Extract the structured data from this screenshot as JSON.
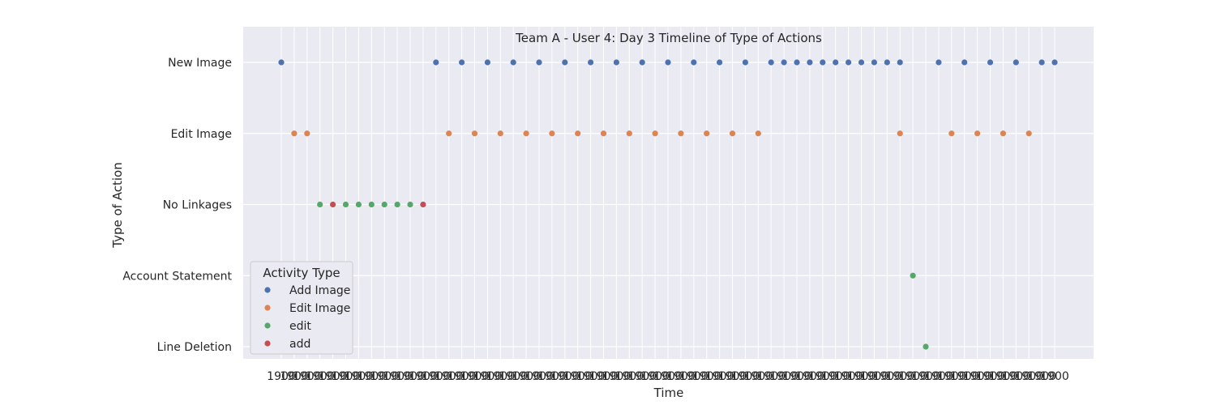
{
  "chart_data": {
    "type": "scatter",
    "title": "Team A - User 4: Day 3 Timeline of Type of Actions",
    "xlabel": "Time",
    "ylabel": "Type of Action",
    "categories": [
      "New Image",
      "Edit Image",
      "No Linkages",
      "Account Statement",
      "Line Deletion"
    ],
    "x_tick_label": "1900",
    "x_tick_count": 61,
    "grid": true,
    "legend": {
      "title": "Activity Type",
      "position": "lower-left",
      "entries": [
        {
          "name": "Add Image",
          "color": "#4c72b0"
        },
        {
          "name": "Edit Image",
          "color": "#dd8452"
        },
        {
          "name": "edit",
          "color": "#55a868"
        },
        {
          "name": "add",
          "color": "#c44e52"
        }
      ]
    },
    "series": [
      {
        "name": "Add Image",
        "color": "#4c72b0",
        "points": [
          [
            0,
            "New Image"
          ],
          [
            12,
            "New Image"
          ],
          [
            14,
            "New Image"
          ],
          [
            16,
            "New Image"
          ],
          [
            18,
            "New Image"
          ],
          [
            20,
            "New Image"
          ],
          [
            22,
            "New Image"
          ],
          [
            24,
            "New Image"
          ],
          [
            26,
            "New Image"
          ],
          [
            28,
            "New Image"
          ],
          [
            30,
            "New Image"
          ],
          [
            32,
            "New Image"
          ],
          [
            34,
            "New Image"
          ],
          [
            36,
            "New Image"
          ],
          [
            38,
            "New Image"
          ],
          [
            39,
            "New Image"
          ],
          [
            40,
            "New Image"
          ],
          [
            41,
            "New Image"
          ],
          [
            42,
            "New Image"
          ],
          [
            43,
            "New Image"
          ],
          [
            44,
            "New Image"
          ],
          [
            45,
            "New Image"
          ],
          [
            46,
            "New Image"
          ],
          [
            47,
            "New Image"
          ],
          [
            48,
            "New Image"
          ],
          [
            51,
            "New Image"
          ],
          [
            53,
            "New Image"
          ],
          [
            55,
            "New Image"
          ],
          [
            57,
            "New Image"
          ],
          [
            59,
            "New Image"
          ],
          [
            60,
            "New Image"
          ]
        ]
      },
      {
        "name": "Edit Image",
        "color": "#dd8452",
        "points": [
          [
            1,
            "Edit Image"
          ],
          [
            2,
            "Edit Image"
          ],
          [
            13,
            "Edit Image"
          ],
          [
            15,
            "Edit Image"
          ],
          [
            17,
            "Edit Image"
          ],
          [
            19,
            "Edit Image"
          ],
          [
            21,
            "Edit Image"
          ],
          [
            23,
            "Edit Image"
          ],
          [
            25,
            "Edit Image"
          ],
          [
            27,
            "Edit Image"
          ],
          [
            29,
            "Edit Image"
          ],
          [
            31,
            "Edit Image"
          ],
          [
            33,
            "Edit Image"
          ],
          [
            35,
            "Edit Image"
          ],
          [
            37,
            "Edit Image"
          ],
          [
            48,
            "Edit Image"
          ],
          [
            52,
            "Edit Image"
          ],
          [
            54,
            "Edit Image"
          ],
          [
            56,
            "Edit Image"
          ],
          [
            58,
            "Edit Image"
          ]
        ]
      },
      {
        "name": "edit",
        "color": "#55a868",
        "points": [
          [
            3,
            "No Linkages"
          ],
          [
            5,
            "No Linkages"
          ],
          [
            6,
            "No Linkages"
          ],
          [
            7,
            "No Linkages"
          ],
          [
            8,
            "No Linkages"
          ],
          [
            9,
            "No Linkages"
          ],
          [
            10,
            "No Linkages"
          ],
          [
            49,
            "Account Statement"
          ],
          [
            50,
            "Line Deletion"
          ]
        ]
      },
      {
        "name": "add",
        "color": "#c44e52",
        "points": [
          [
            4,
            "No Linkages"
          ],
          [
            11,
            "No Linkages"
          ]
        ]
      }
    ]
  }
}
